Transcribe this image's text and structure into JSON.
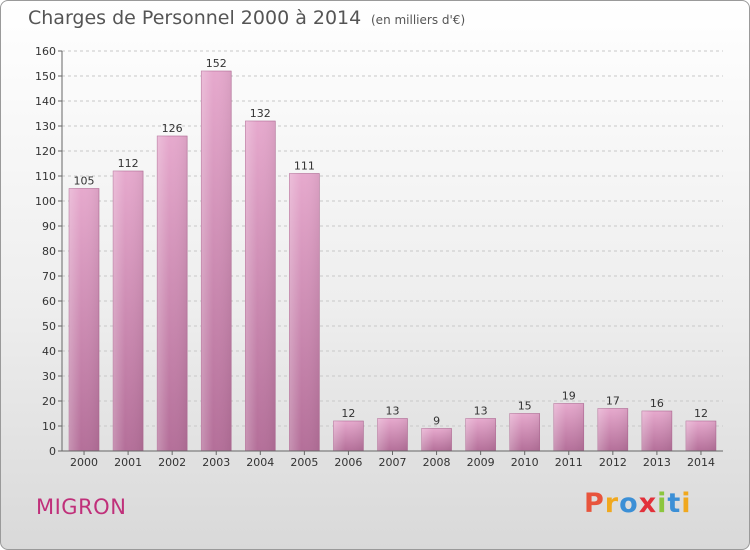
{
  "title": "Charges de Personnel 2000 à 2014",
  "subtitle": "(en milliers d'€)",
  "commune": "MIGRON",
  "logo": {
    "letters": [
      "P",
      "r",
      "o",
      "x",
      "i",
      "t",
      "i"
    ]
  },
  "colors": {
    "bar": "#d98cb8",
    "bar_edge": "#b06a94",
    "commune_text": "#c0307a"
  },
  "chart_data": {
    "type": "bar",
    "categories": [
      "2000",
      "2001",
      "2002",
      "2003",
      "2004",
      "2005",
      "2006",
      "2007",
      "2008",
      "2009",
      "2010",
      "2011",
      "2012",
      "2013",
      "2014"
    ],
    "values": [
      105,
      112,
      126,
      152,
      132,
      111,
      12,
      13,
      9,
      13,
      15,
      19,
      17,
      16,
      12
    ],
    "title": "Charges de Personnel 2000 à 2014",
    "ylim": [
      0,
      160
    ],
    "yticks": [
      0,
      10,
      20,
      30,
      40,
      50,
      60,
      70,
      80,
      90,
      100,
      110,
      120,
      130,
      140,
      150,
      160
    ],
    "grid": true,
    "legend": "none"
  }
}
